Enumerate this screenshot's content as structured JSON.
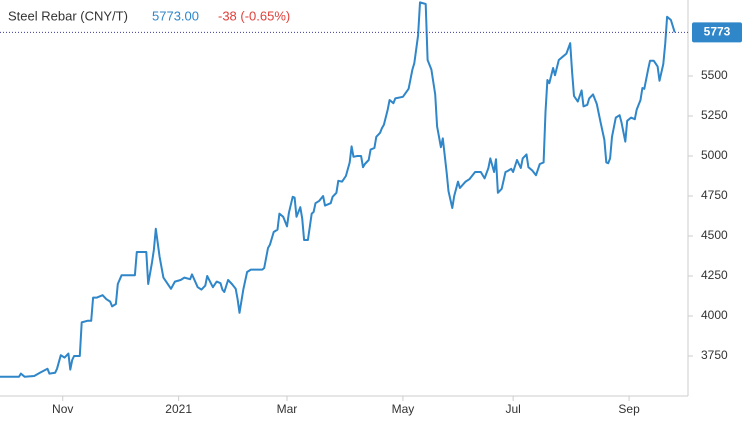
{
  "chart_data": {
    "type": "line",
    "title": "Steel Rebar (CNY/T)",
    "price": "5773.00",
    "change": "-38 (-0.65%)",
    "x": [
      -33,
      -23,
      -22,
      -20,
      -15,
      -12,
      -8,
      -7,
      -4,
      -3,
      -1,
      1,
      3,
      4,
      5,
      6,
      9,
      10,
      13,
      15,
      16,
      18,
      21,
      23,
      25,
      26,
      28,
      29,
      31,
      35,
      38,
      39,
      44,
      45,
      47,
      48,
      49,
      51,
      53,
      55,
      57,
      59,
      62,
      64,
      67,
      68,
      71,
      73,
      75,
      76,
      79,
      81,
      83,
      84,
      85,
      87,
      89,
      91,
      92,
      93,
      95,
      97,
      99,
      105,
      106,
      108,
      109,
      111,
      113,
      114,
      116,
      118,
      119,
      121,
      122,
      123,
      125,
      126,
      127,
      129,
      131,
      132,
      133,
      135,
      137,
      138,
      141,
      142,
      144,
      145,
      147,
      149,
      151,
      152,
      153,
      155,
      157,
      158,
      159,
      161,
      162,
      164,
      165,
      167,
      168,
      169,
      171,
      172,
      174,
      175,
      179,
      182,
      184,
      185,
      187,
      188,
      191,
      192,
      194,
      196,
      197,
      199,
      200,
      202,
      203,
      205,
      206,
      208,
      209,
      212,
      214,
      217,
      220,
      222,
      224,
      225,
      227,
      228,
      229,
      231,
      233,
      234,
      236,
      237,
      239,
      241,
      242,
      244,
      245,
      247,
      249,
      251,
      253,
      254,
      255,
      256,
      258,
      259,
      261,
      263,
      265,
      267,
      268,
      269,
      271,
      273,
      274,
      276,
      277,
      279,
      281,
      283,
      285,
      286,
      287,
      288,
      289,
      291,
      293,
      294,
      296,
      297,
      299,
      301,
      302,
      304,
      305,
      306,
      308,
      309,
      311,
      313,
      314,
      316,
      317,
      318,
      320,
      322
    ],
    "values": [
      3620,
      3620,
      3640,
      3620,
      3625,
      3645,
      3670,
      3640,
      3645,
      3670,
      3755,
      3740,
      3765,
      3665,
      3725,
      3750,
      3750,
      3960,
      3970,
      3970,
      4115,
      4115,
      4130,
      4105,
      4090,
      4060,
      4075,
      4200,
      4255,
      4255,
      4255,
      4400,
      4400,
      4200,
      4335,
      4415,
      4545,
      4370,
      4240,
      4205,
      4170,
      4215,
      4225,
      4240,
      4230,
      4260,
      4180,
      4165,
      4190,
      4250,
      4180,
      4215,
      4205,
      4165,
      4150,
      4225,
      4200,
      4170,
      4105,
      4020,
      4165,
      4275,
      4290,
      4290,
      4300,
      4425,
      4445,
      4525,
      4540,
      4640,
      4620,
      4560,
      4645,
      4745,
      4740,
      4620,
      4680,
      4610,
      4475,
      4475,
      4640,
      4650,
      4705,
      4720,
      4750,
      4690,
      4705,
      4745,
      4770,
      4845,
      4840,
      4875,
      4960,
      5060,
      4995,
      5000,
      5000,
      4930,
      4950,
      4975,
      5040,
      5050,
      5120,
      5145,
      5175,
      5195,
      5290,
      5350,
      5330,
      5360,
      5370,
      5420,
      5540,
      5580,
      5755,
      5960,
      5950,
      5600,
      5540,
      5385,
      5185,
      5055,
      5110,
      4900,
      4780,
      4675,
      4750,
      4840,
      4800,
      4840,
      4855,
      4900,
      4900,
      4860,
      4925,
      4985,
      4900,
      4980,
      4770,
      4795,
      4900,
      4905,
      4920,
      4900,
      4975,
      4925,
      4985,
      5010,
      4930,
      4910,
      4880,
      4950,
      4960,
      5275,
      5475,
      5455,
      5550,
      5505,
      5600,
      5620,
      5640,
      5705,
      5525,
      5375,
      5340,
      5410,
      5310,
      5320,
      5360,
      5385,
      5325,
      5210,
      5100,
      4960,
      4955,
      4985,
      5120,
      5240,
      5255,
      5210,
      5090,
      5220,
      5240,
      5230,
      5290,
      5350,
      5425,
      5420,
      5540,
      5595,
      5595,
      5560,
      5470,
      5575,
      5700,
      5870,
      5850,
      5773
    ],
    "color": "#2f86c8",
    "xlim": [
      -33,
      329
    ],
    "xticks": [
      {
        "value": 0,
        "label": "Nov"
      },
      {
        "value": 61,
        "label": "2021"
      },
      {
        "value": 118,
        "label": "Mar"
      },
      {
        "value": 179,
        "label": "May"
      },
      {
        "value": 237,
        "label": "Jul"
      },
      {
        "value": 298,
        "label": "Sep"
      }
    ],
    "ylim": [
      3500,
      5975
    ],
    "yticks": [
      3750,
      4000,
      4250,
      4500,
      4750,
      5000,
      5250,
      5500
    ],
    "grid": false
  }
}
